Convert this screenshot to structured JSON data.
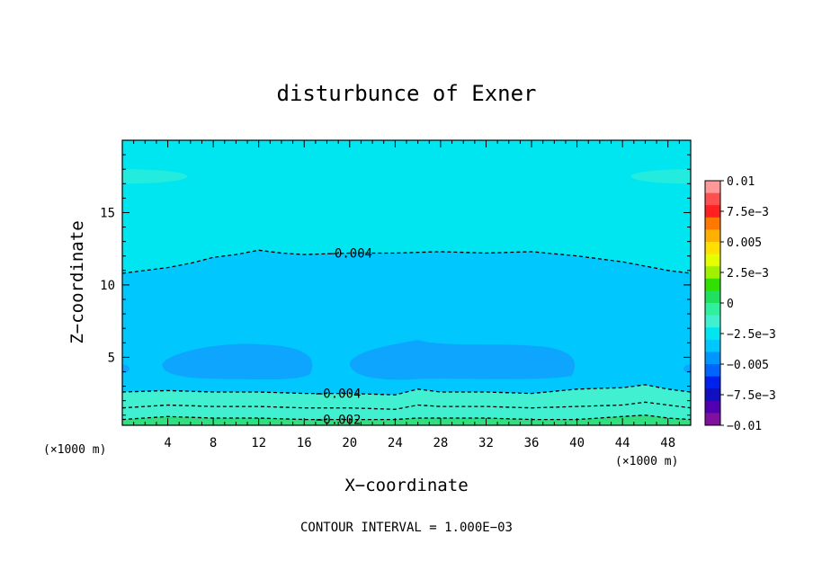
{
  "chart_data": {
    "type": "heatmap",
    "title": "disturbunce of Exner",
    "xlabel": "X−coordinate",
    "ylabel": "Z−coordinate",
    "x_unit": "(×1000 m)",
    "y_unit": "(×1000 m)",
    "xlim": [
      0,
      50
    ],
    "ylim": [
      0.3,
      20
    ],
    "x_ticks": [
      4,
      8,
      12,
      16,
      20,
      24,
      28,
      32,
      36,
      40,
      44,
      48
    ],
    "y_ticks": [
      5,
      10,
      15
    ],
    "contour_interval_text": "CONTOUR INTERVAL = 1.000E−03",
    "colorbar": {
      "levels": [
        -0.01,
        -0.0075,
        -0.005,
        -0.0025,
        0,
        0.0025,
        0.005,
        0.0075,
        0.01
      ],
      "labels": [
        "0.01",
        "7.5e−3",
        "0.005",
        "2.5e−3",
        "0",
        "−2.5e−3",
        "−0.005",
        "−7.5e−3",
        "−0.01"
      ],
      "colors_top_to_bottom": [
        "#ff9999",
        "#ff5050",
        "#ff2020",
        "#ff7800",
        "#ffb000",
        "#ffe000",
        "#e6ff00",
        "#a0f000",
        "#30e000",
        "#20e060",
        "#30f0a0",
        "#40f0d0",
        "#00e6f0",
        "#00c8ff",
        "#0096ff",
        "#0064ff",
        "#0020f0",
        "#1010c0",
        "#5000b0",
        "#8010a0"
      ]
    },
    "fill_regions": [
      {
        "name": "upper",
        "color": "#00e6f0",
        "z_from": 11,
        "z_to": 20
      },
      {
        "name": "middle",
        "color": "#00c8ff",
        "z_from": 2.6,
        "z_to": 11
      },
      {
        "name": "low-blobs",
        "color": "#0ea5ff",
        "z_from": 3.4,
        "z_to": 6.0
      },
      {
        "name": "near-ground",
        "color": "#40f0d0",
        "z_from": 0.8,
        "z_to": 2.6
      },
      {
        "name": "ground",
        "color": "#30e080",
        "z_from": 0.3,
        "z_to": 0.8
      }
    ],
    "contours": [
      {
        "value": -0.004,
        "label": "−0.004",
        "label_at": [
          20,
          12.2
        ],
        "points": [
          [
            0,
            10.8
          ],
          [
            4,
            11.2
          ],
          [
            6,
            11.5
          ],
          [
            8,
            11.9
          ],
          [
            10,
            12.1
          ],
          [
            12,
            12.4
          ],
          [
            14,
            12.2
          ],
          [
            16,
            12.1
          ],
          [
            20,
            12.2
          ],
          [
            24,
            12.2
          ],
          [
            28,
            12.3
          ],
          [
            32,
            12.2
          ],
          [
            36,
            12.3
          ],
          [
            40,
            12.0
          ],
          [
            44,
            11.6
          ],
          [
            48,
            11.0
          ],
          [
            50,
            10.8
          ]
        ]
      },
      {
        "value": -0.004,
        "label": "−0.004",
        "label_at": [
          19,
          2.5
        ],
        "points": [
          [
            0,
            2.6
          ],
          [
            4,
            2.7
          ],
          [
            8,
            2.6
          ],
          [
            12,
            2.6
          ],
          [
            16,
            2.5
          ],
          [
            20,
            2.5
          ],
          [
            24,
            2.4
          ],
          [
            26,
            2.8
          ],
          [
            28,
            2.6
          ],
          [
            32,
            2.6
          ],
          [
            36,
            2.5
          ],
          [
            40,
            2.8
          ],
          [
            44,
            2.9
          ],
          [
            46,
            3.1
          ],
          [
            48,
            2.8
          ],
          [
            50,
            2.6
          ]
        ]
      },
      {
        "value": -0.003,
        "label": "",
        "points": [
          [
            0,
            1.5
          ],
          [
            4,
            1.7
          ],
          [
            8,
            1.6
          ],
          [
            12,
            1.6
          ],
          [
            16,
            1.5
          ],
          [
            20,
            1.5
          ],
          [
            24,
            1.4
          ],
          [
            26,
            1.7
          ],
          [
            28,
            1.6
          ],
          [
            32,
            1.6
          ],
          [
            36,
            1.5
          ],
          [
            40,
            1.6
          ],
          [
            44,
            1.7
          ],
          [
            46,
            1.9
          ],
          [
            48,
            1.7
          ],
          [
            50,
            1.5
          ]
        ]
      },
      {
        "value": -0.002,
        "label": "−0.002",
        "label_at": [
          19,
          0.7
        ],
        "points": [
          [
            0,
            0.7
          ],
          [
            4,
            0.9
          ],
          [
            8,
            0.8
          ],
          [
            12,
            0.8
          ],
          [
            16,
            0.7
          ],
          [
            20,
            0.7
          ],
          [
            24,
            0.7
          ],
          [
            26,
            0.8
          ],
          [
            28,
            0.8
          ],
          [
            32,
            0.8
          ],
          [
            36,
            0.7
          ],
          [
            40,
            0.7
          ],
          [
            44,
            0.9
          ],
          [
            46,
            1.0
          ],
          [
            48,
            0.8
          ],
          [
            50,
            0.7
          ]
        ]
      }
    ]
  }
}
